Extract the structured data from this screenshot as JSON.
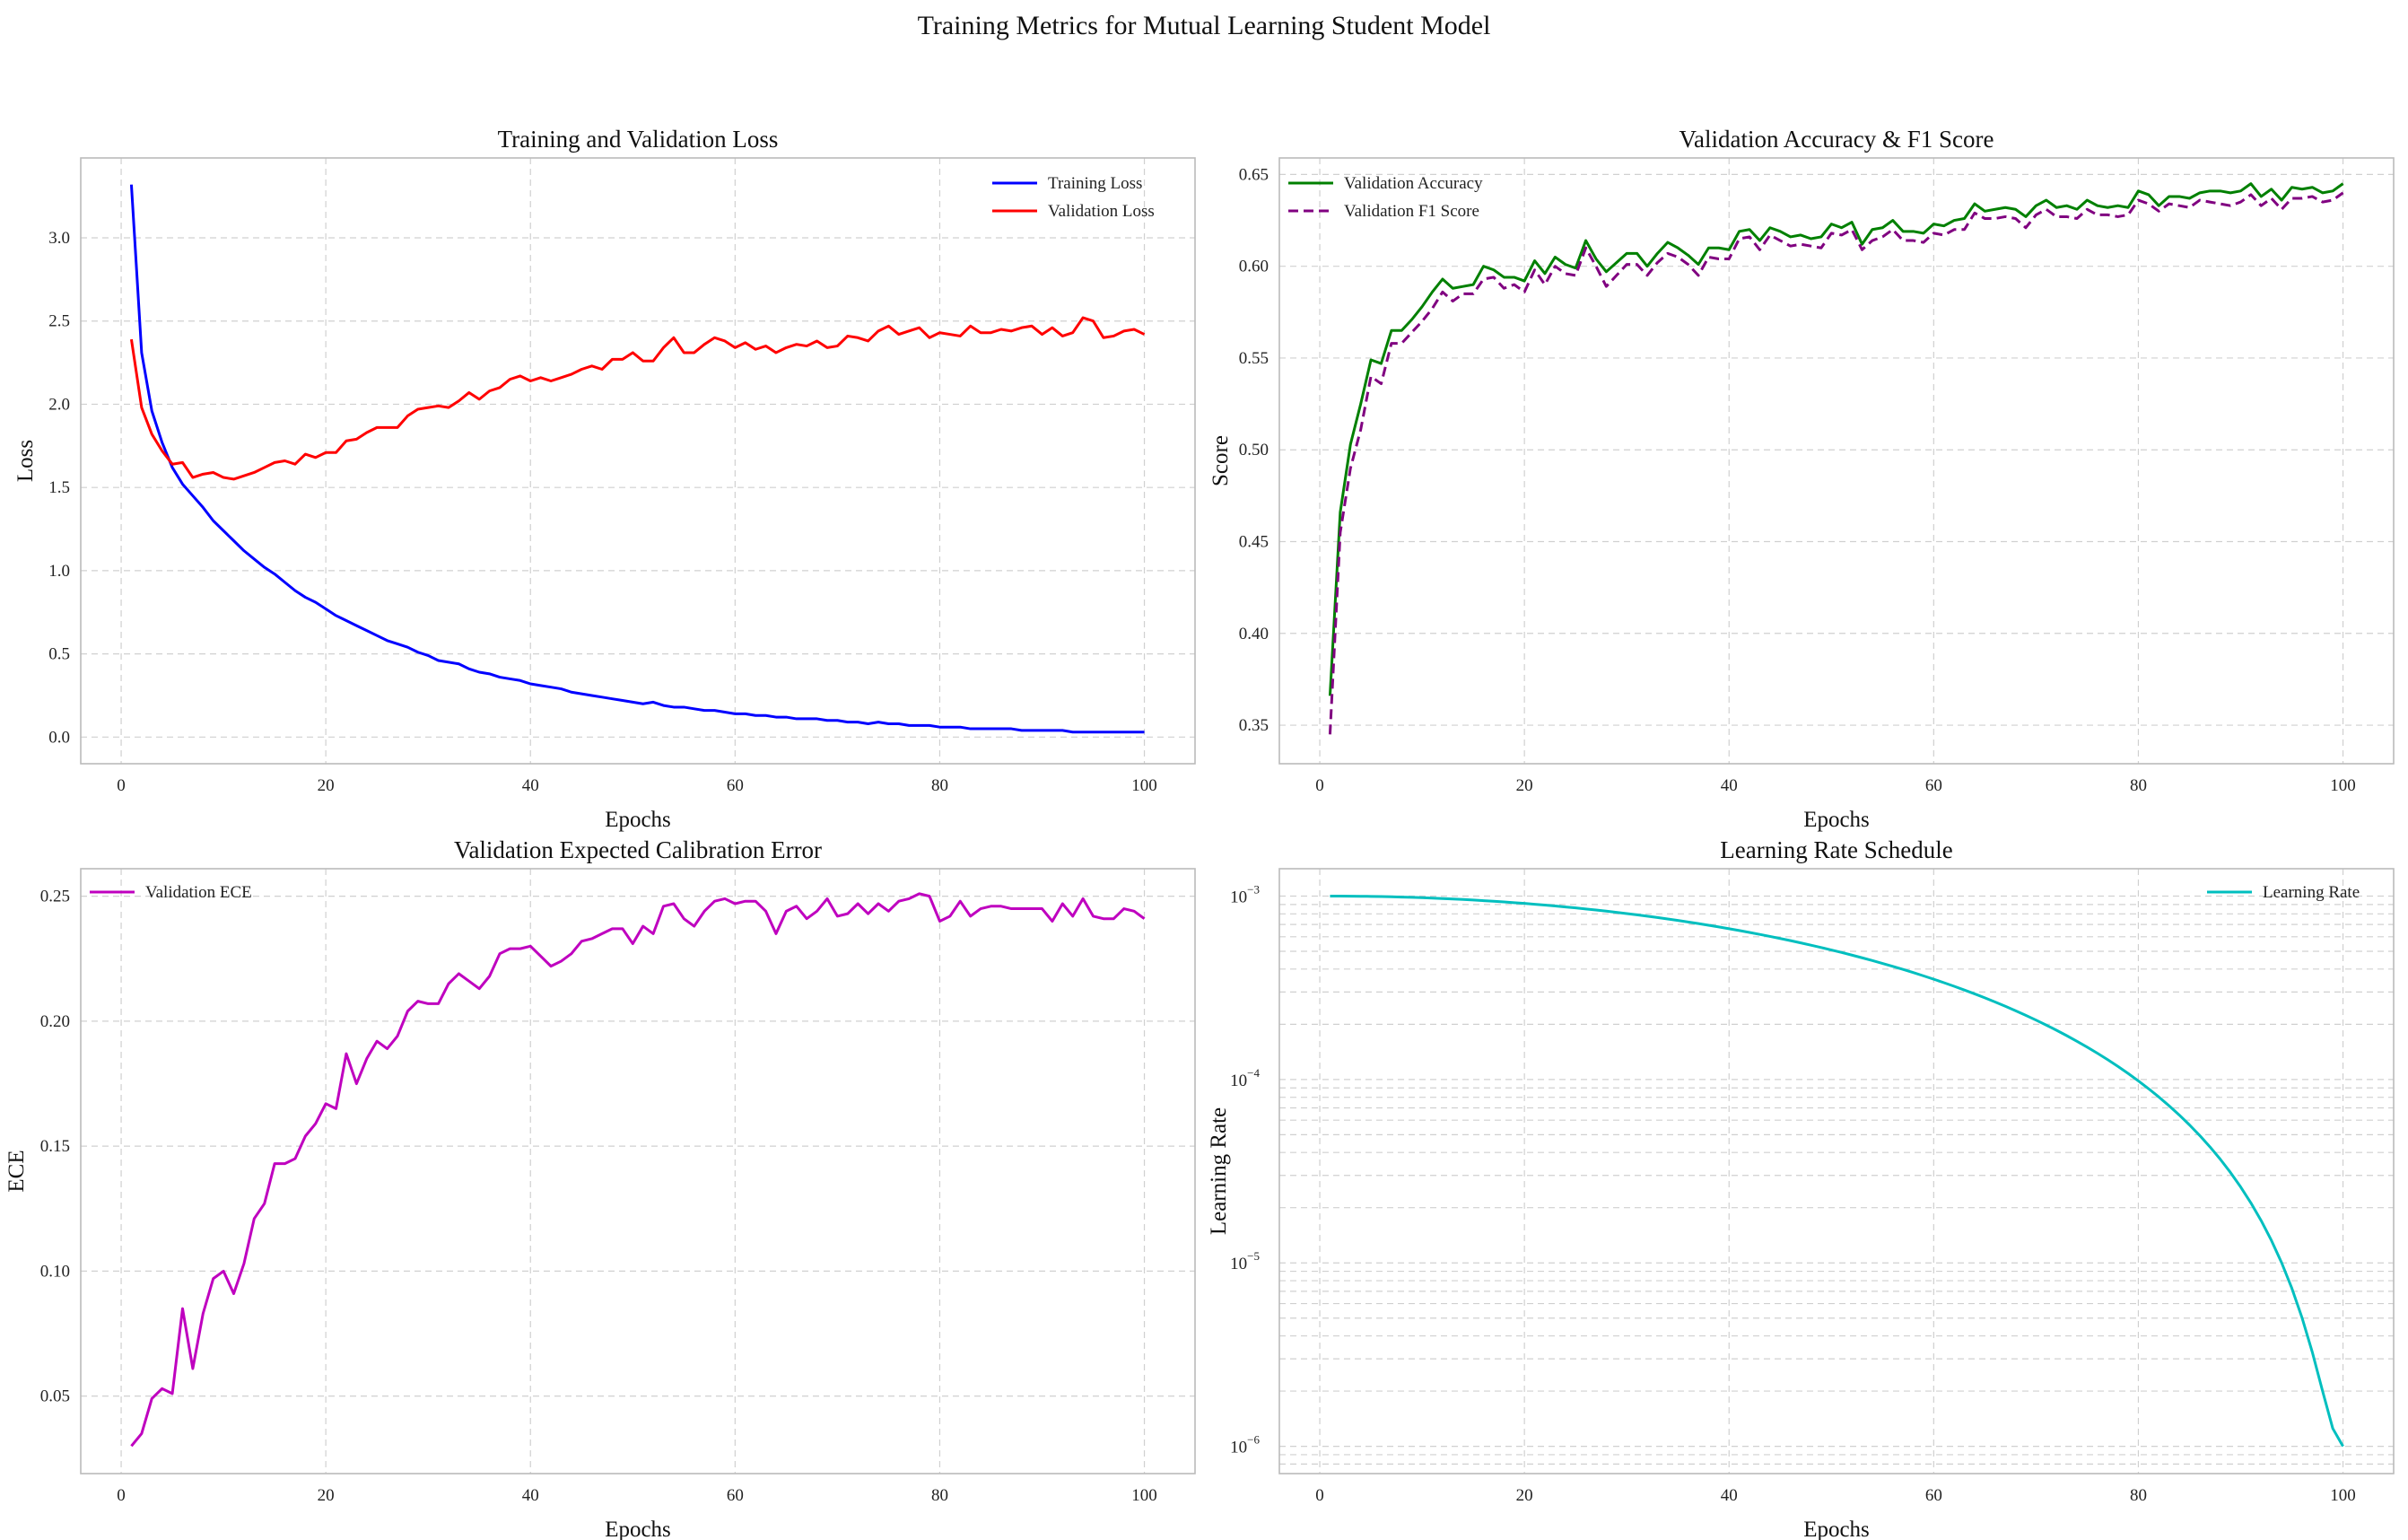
{
  "suptitle": "Training Metrics for Mutual Learning Student Model",
  "chart_data": [
    {
      "type": "line",
      "title": "Training and Validation Loss",
      "xlabel": "Epochs",
      "ylabel": "Loss",
      "xlim": [
        -3.95,
        104.95
      ],
      "ylim": [
        -0.16,
        3.48
      ],
      "xticks": [
        0,
        20,
        40,
        60,
        80,
        100
      ],
      "yticks": [
        0.0,
        0.5,
        1.0,
        1.5,
        2.0,
        2.5,
        3.0
      ],
      "ytick_labels": [
        "0.0",
        "0.5",
        "1.0",
        "1.5",
        "2.0",
        "2.5",
        "3.0"
      ],
      "grid": true,
      "legend": "upper-right",
      "x_start": 1,
      "series": [
        {
          "name": "Training Loss",
          "color": "#0000ff",
          "dash": "solid",
          "values": [
            3.32,
            2.31,
            1.96,
            1.77,
            1.62,
            1.52,
            1.45,
            1.38,
            1.3,
            1.24,
            1.18,
            1.12,
            1.07,
            1.02,
            0.98,
            0.93,
            0.88,
            0.84,
            0.81,
            0.77,
            0.73,
            0.7,
            0.67,
            0.64,
            0.61,
            0.58,
            0.56,
            0.54,
            0.51,
            0.49,
            0.46,
            0.45,
            0.44,
            0.41,
            0.39,
            0.38,
            0.36,
            0.35,
            0.34,
            0.32,
            0.31,
            0.3,
            0.29,
            0.27,
            0.26,
            0.25,
            0.24,
            0.23,
            0.22,
            0.21,
            0.2,
            0.21,
            0.19,
            0.18,
            0.18,
            0.17,
            0.16,
            0.16,
            0.15,
            0.14,
            0.14,
            0.13,
            0.13,
            0.12,
            0.12,
            0.11,
            0.11,
            0.11,
            0.1,
            0.1,
            0.09,
            0.09,
            0.08,
            0.09,
            0.08,
            0.08,
            0.07,
            0.07,
            0.07,
            0.06,
            0.06,
            0.06,
            0.05,
            0.05,
            0.05,
            0.05,
            0.05,
            0.04,
            0.04,
            0.04,
            0.04,
            0.04,
            0.03,
            0.03,
            0.03,
            0.03,
            0.03,
            0.03,
            0.03,
            0.03
          ]
        },
        {
          "name": "Validation Loss",
          "color": "#ff0000",
          "dash": "solid",
          "values": [
            2.39,
            1.98,
            1.82,
            1.72,
            1.64,
            1.65,
            1.56,
            1.58,
            1.59,
            1.56,
            1.55,
            1.57,
            1.59,
            1.62,
            1.65,
            1.66,
            1.64,
            1.7,
            1.68,
            1.71,
            1.71,
            1.78,
            1.79,
            1.83,
            1.86,
            1.86,
            1.86,
            1.93,
            1.97,
            1.98,
            1.99,
            1.98,
            2.02,
            2.07,
            2.03,
            2.08,
            2.1,
            2.15,
            2.17,
            2.14,
            2.16,
            2.14,
            2.16,
            2.18,
            2.21,
            2.23,
            2.21,
            2.27,
            2.27,
            2.31,
            2.26,
            2.26,
            2.34,
            2.4,
            2.31,
            2.31,
            2.36,
            2.4,
            2.38,
            2.34,
            2.37,
            2.33,
            2.35,
            2.31,
            2.34,
            2.36,
            2.35,
            2.38,
            2.34,
            2.35,
            2.41,
            2.4,
            2.38,
            2.44,
            2.47,
            2.42,
            2.44,
            2.46,
            2.4,
            2.43,
            2.42,
            2.41,
            2.47,
            2.43,
            2.43,
            2.45,
            2.44,
            2.46,
            2.47,
            2.42,
            2.46,
            2.41,
            2.43,
            2.52,
            2.5,
            2.4,
            2.41,
            2.44,
            2.45,
            2.42
          ]
        }
      ]
    },
    {
      "type": "line",
      "title": "Validation Accuracy & F1 Score",
      "xlabel": "Epochs",
      "ylabel": "Score",
      "xlim": [
        -3.95,
        104.95
      ],
      "ylim": [
        0.329,
        0.659
      ],
      "xticks": [
        0,
        20,
        40,
        60,
        80,
        100
      ],
      "yticks": [
        0.35,
        0.4,
        0.45,
        0.5,
        0.55,
        0.6,
        0.65
      ],
      "ytick_labels": [
        "0.35",
        "0.40",
        "0.45",
        "0.50",
        "0.55",
        "0.60",
        "0.65"
      ],
      "grid": true,
      "legend": "upper-left",
      "x_start": 1,
      "series": [
        {
          "name": "Validation Accuracy",
          "color": "#008000",
          "dash": "solid",
          "values": [
            0.366,
            0.466,
            0.503,
            0.525,
            0.549,
            0.547,
            0.565,
            0.565,
            0.571,
            0.578,
            0.586,
            0.593,
            0.588,
            0.589,
            0.59,
            0.6,
            0.598,
            0.594,
            0.594,
            0.592,
            0.603,
            0.596,
            0.605,
            0.601,
            0.599,
            0.614,
            0.604,
            0.597,
            0.602,
            0.607,
            0.607,
            0.6,
            0.607,
            0.613,
            0.61,
            0.606,
            0.601,
            0.61,
            0.61,
            0.609,
            0.619,
            0.62,
            0.614,
            0.621,
            0.619,
            0.616,
            0.617,
            0.615,
            0.616,
            0.623,
            0.621,
            0.624,
            0.612,
            0.62,
            0.621,
            0.625,
            0.619,
            0.619,
            0.618,
            0.623,
            0.622,
            0.625,
            0.626,
            0.634,
            0.63,
            0.631,
            0.632,
            0.631,
            0.627,
            0.633,
            0.636,
            0.632,
            0.633,
            0.631,
            0.636,
            0.633,
            0.632,
            0.633,
            0.632,
            0.641,
            0.639,
            0.633,
            0.638,
            0.638,
            0.637,
            0.64,
            0.641,
            0.641,
            0.64,
            0.641,
            0.645,
            0.638,
            0.642,
            0.636,
            0.643,
            0.642,
            0.643,
            0.64,
            0.641,
            0.645
          ]
        },
        {
          "name": "Validation F1 Score",
          "color": "#800080",
          "dash": "dashed",
          "values": [
            0.345,
            0.455,
            0.49,
            0.511,
            0.54,
            0.536,
            0.558,
            0.558,
            0.564,
            0.57,
            0.577,
            0.586,
            0.581,
            0.585,
            0.585,
            0.593,
            0.594,
            0.588,
            0.59,
            0.586,
            0.598,
            0.59,
            0.6,
            0.596,
            0.595,
            0.61,
            0.6,
            0.589,
            0.595,
            0.601,
            0.601,
            0.595,
            0.602,
            0.607,
            0.605,
            0.601,
            0.595,
            0.605,
            0.604,
            0.604,
            0.615,
            0.616,
            0.609,
            0.617,
            0.614,
            0.611,
            0.612,
            0.611,
            0.61,
            0.618,
            0.617,
            0.62,
            0.609,
            0.614,
            0.616,
            0.62,
            0.614,
            0.614,
            0.613,
            0.618,
            0.617,
            0.62,
            0.62,
            0.629,
            0.626,
            0.626,
            0.627,
            0.626,
            0.621,
            0.628,
            0.631,
            0.627,
            0.627,
            0.626,
            0.631,
            0.628,
            0.628,
            0.627,
            0.628,
            0.636,
            0.634,
            0.63,
            0.634,
            0.633,
            0.632,
            0.636,
            0.635,
            0.634,
            0.633,
            0.635,
            0.639,
            0.633,
            0.637,
            0.631,
            0.637,
            0.637,
            0.638,
            0.635,
            0.636,
            0.64
          ]
        }
      ]
    },
    {
      "type": "line",
      "title": "Validation Expected Calibration Error",
      "xlabel": "Epochs",
      "ylabel": "ECE",
      "xlim": [
        -3.95,
        104.95
      ],
      "ylim": [
        0.019,
        0.261
      ],
      "xticks": [
        0,
        20,
        40,
        60,
        80,
        100
      ],
      "yticks": [
        0.05,
        0.1,
        0.15,
        0.2,
        0.25
      ],
      "ytick_labels": [
        "0.05",
        "0.10",
        "0.15",
        "0.20",
        "0.25"
      ],
      "grid": true,
      "legend": "upper-left",
      "x_start": 1,
      "series": [
        {
          "name": "Validation ECE",
          "color": "#bf00bf",
          "dash": "solid",
          "values": [
            0.03,
            0.035,
            0.049,
            0.053,
            0.051,
            0.085,
            0.061,
            0.083,
            0.097,
            0.1,
            0.091,
            0.103,
            0.121,
            0.127,
            0.143,
            0.143,
            0.145,
            0.154,
            0.159,
            0.167,
            0.165,
            0.187,
            0.175,
            0.185,
            0.192,
            0.189,
            0.194,
            0.204,
            0.208,
            0.207,
            0.207,
            0.215,
            0.219,
            0.216,
            0.213,
            0.218,
            0.227,
            0.229,
            0.229,
            0.23,
            0.226,
            0.222,
            0.224,
            0.227,
            0.232,
            0.233,
            0.235,
            0.237,
            0.237,
            0.231,
            0.238,
            0.235,
            0.246,
            0.247,
            0.241,
            0.238,
            0.244,
            0.248,
            0.249,
            0.247,
            0.248,
            0.248,
            0.244,
            0.235,
            0.244,
            0.246,
            0.241,
            0.244,
            0.249,
            0.242,
            0.243,
            0.247,
            0.243,
            0.247,
            0.244,
            0.248,
            0.249,
            0.251,
            0.25,
            0.24,
            0.242,
            0.248,
            0.242,
            0.245,
            0.246,
            0.246,
            0.245,
            0.245,
            0.245,
            0.245,
            0.24,
            0.247,
            0.242,
            0.249,
            0.242,
            0.241,
            0.241,
            0.245,
            0.244,
            0.241
          ]
        }
      ]
    },
    {
      "type": "line",
      "title": "Learning Rate Schedule",
      "xlabel": "Epochs",
      "ylabel": "Learning Rate",
      "xlim": [
        -3.95,
        104.95
      ],
      "ylog": true,
      "ylim": [
        7.1e-07,
        0.00141
      ],
      "xticks": [
        0,
        20,
        40,
        60,
        80,
        100
      ],
      "ytick_labels": [
        {
          "base": "10",
          "exp": "−3"
        },
        {
          "base": "10",
          "exp": "−4"
        },
        {
          "base": "10",
          "exp": "−5"
        },
        {
          "base": "10",
          "exp": "−6"
        }
      ],
      "yticks": [
        0.001,
        0.0001,
        1e-05,
        1e-06
      ],
      "grid": true,
      "legend": "upper-right",
      "x_start": 1,
      "series": [
        {
          "name": "Learning Rate",
          "color": "#00bfbf",
          "dash": "solid",
          "formula": "cosine annealing: 1e-6 + (1e-3 - 1e-6) * 0.5 * (1 + cos(pi * (epoch - 1) / 99))",
          "lr_max": 0.001,
          "lr_min": 1e-06
        }
      ]
    }
  ]
}
